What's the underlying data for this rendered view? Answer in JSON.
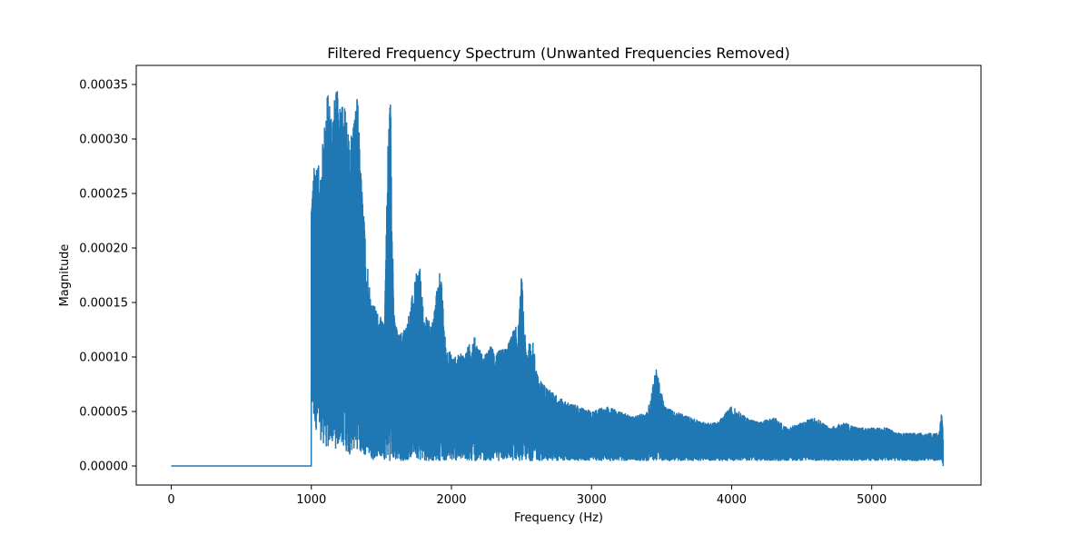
{
  "chart_data": {
    "type": "line",
    "title": "Filtered Frequency Spectrum (Unwanted Frequencies Removed)",
    "xlabel": "Frequency (Hz)",
    "ylabel": "Magnitude",
    "xlim": [
      -250,
      5780
    ],
    "ylim": [
      -1.75e-05,
      0.0003675
    ],
    "xticks": [
      0,
      1000,
      2000,
      3000,
      4000,
      5000
    ],
    "xtick_labels": [
      "0",
      "1000",
      "2000",
      "3000",
      "4000",
      "5000"
    ],
    "yticks": [
      0,
      5e-05,
      0.0001,
      0.00015,
      0.0002,
      0.00025,
      0.0003,
      0.00035
    ],
    "ytick_labels": [
      "0.00000",
      "0.00005",
      "0.00010",
      "0.00015",
      "0.00020",
      "0.00025",
      "0.00030",
      "0.00035"
    ],
    "grid": false,
    "legend": false,
    "series": [
      {
        "color": "#1f77b4",
        "envelope_x": [
          0,
          999,
          1000,
          1010,
          1030,
          1060,
          1090,
          1110,
          1150,
          1180,
          1210,
          1240,
          1270,
          1300,
          1330,
          1350,
          1380,
          1420,
          1440,
          1480,
          1520,
          1550,
          1565,
          1590,
          1620,
          1680,
          1740,
          1770,
          1800,
          1860,
          1920,
          1960,
          2020,
          2100,
          2160,
          2230,
          2280,
          2330,
          2400,
          2440,
          2480,
          2500,
          2530,
          2580,
          2620,
          2700,
          2800,
          2900,
          3000,
          3100,
          3200,
          3300,
          3400,
          3460,
          3520,
          3600,
          3700,
          3800,
          3900,
          4000,
          4100,
          4200,
          4300,
          4400,
          4500,
          4600,
          4700,
          4800,
          4900,
          5000,
          5100,
          5200,
          5300,
          5400,
          5480,
          5500,
          5510
        ],
        "envelope_upper": [
          0,
          0,
          0.00025,
          0.00026,
          0.00029,
          0.00027,
          0.00031,
          0.000345,
          0.00033,
          0.000345,
          0.00034,
          0.00033,
          0.0003,
          0.00032,
          0.00034,
          0.00028,
          0.00022,
          0.00016,
          0.00015,
          0.00014,
          0.00013,
          0.00032,
          0.00034,
          0.00014,
          0.00012,
          0.00013,
          0.00017,
          0.00019,
          0.00014,
          0.00013,
          0.000185,
          0.00011,
          0.0001,
          0.000105,
          0.00012,
          0.0001,
          0.00011,
          0.000105,
          0.00011,
          0.000125,
          0.00013,
          0.000178,
          0.00011,
          0.000115,
          8e-05,
          7e-05,
          6e-05,
          5.5e-05,
          5e-05,
          5.5e-05,
          5e-05,
          4.5e-05,
          5e-05,
          9e-05,
          5.5e-05,
          5e-05,
          4.5e-05,
          4e-05,
          4e-05,
          5.5e-05,
          4.5e-05,
          4e-05,
          4.5e-05,
          3.5e-05,
          4e-05,
          4.5e-05,
          3.5e-05,
          4e-05,
          3.5e-05,
          3.5e-05,
          3.5e-05,
          3e-05,
          3e-05,
          3e-05,
          3e-05,
          5e-05,
          3e-05
        ],
        "envelope_lower": [
          0,
          0,
          8e-05,
          4e-05,
          3.5e-05,
          2.5e-05,
          2e-05,
          1.5e-05,
          2e-05,
          1.5e-05,
          2e-05,
          1.5e-05,
          1e-05,
          1.5e-05,
          1.5e-05,
          1e-05,
          1e-05,
          1e-05,
          5e-06,
          1e-05,
          5e-06,
          5e-06,
          5e-06,
          5e-06,
          5e-06,
          5e-06,
          1e-05,
          5e-06,
          5e-06,
          5e-06,
          5e-06,
          5e-06,
          5e-06,
          5e-06,
          5e-06,
          5e-06,
          5e-06,
          5e-06,
          5e-06,
          5e-06,
          5e-06,
          5e-06,
          5e-06,
          5e-06,
          5e-06,
          5e-06,
          5e-06,
          5e-06,
          5e-06,
          5e-06,
          5e-06,
          5e-06,
          5e-06,
          5e-06,
          5e-06,
          5e-06,
          5e-06,
          5e-06,
          5e-06,
          5e-06,
          5e-06,
          5e-06,
          5e-06,
          5e-06,
          5e-06,
          5e-06,
          5e-06,
          5e-06,
          5e-06,
          5e-06,
          5e-06,
          5e-06,
          5e-06,
          5e-06,
          5e-06,
          5e-06,
          0
        ]
      }
    ]
  }
}
